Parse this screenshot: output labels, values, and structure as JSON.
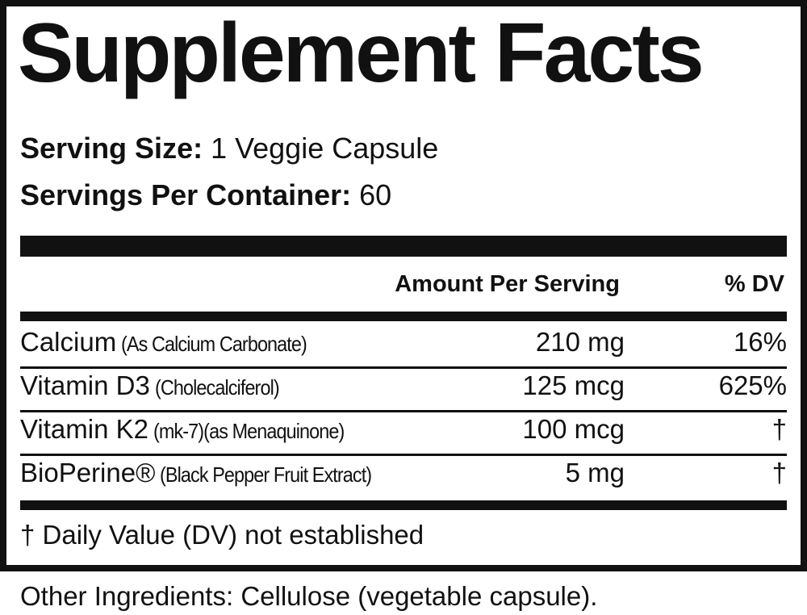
{
  "title": "Supplement Facts",
  "serving_size": {
    "label": "Serving Size:",
    "value": "1 Veggie Capsule"
  },
  "servings_per_container": {
    "label": "Servings Per Container:",
    "value": "60"
  },
  "table": {
    "header": {
      "amount": "Amount Per Serving",
      "dv": "% DV"
    },
    "rows": [
      {
        "name": "Calcium",
        "detail": "(As Calcium Carbonate)",
        "amount": "210 mg",
        "dv": "16%"
      },
      {
        "name": "Vitamin D3",
        "detail": "(Cholecalciferol)",
        "amount": "125 mcg",
        "dv": "625%"
      },
      {
        "name": "Vitamin K2",
        "detail": "(mk-7)(as Menaquinone)",
        "amount": "100 mcg",
        "dv": "†"
      },
      {
        "name": "BioPerine®",
        "detail": "(Black Pepper Fruit Extract)",
        "amount": "5 mg",
        "dv": "†"
      }
    ]
  },
  "footnote": "† Daily Value (DV) not established",
  "other_ingredients": "Other Ingredients: Cellulose (vegetable capsule)."
}
